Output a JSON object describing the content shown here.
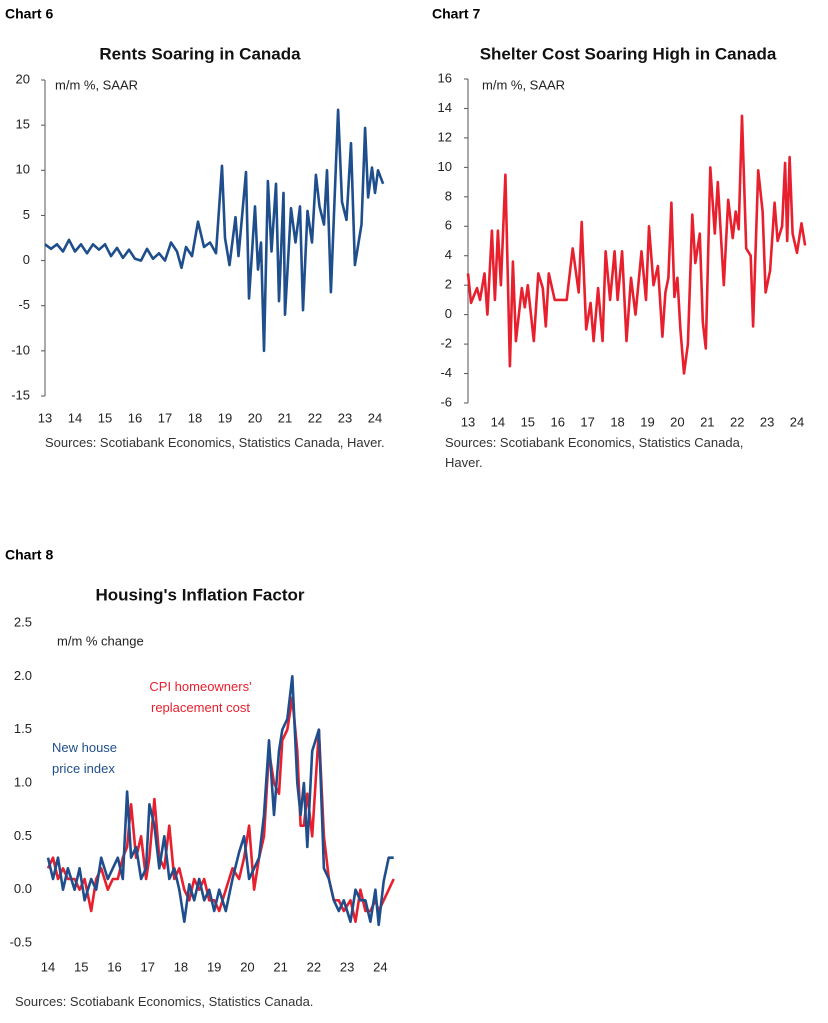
{
  "chart_data": [
    {
      "type": "line",
      "chart_label": "Chart 6",
      "title": "Rents Soaring in Canada",
      "ylabel": "m/m %, SAAR",
      "source": "Sources: Scotiabank Economics, Statistics Canada, Haver.",
      "xlim": [
        13,
        24.5
      ],
      "ylim": [
        -15,
        20
      ],
      "y_axis_line": true,
      "xticks": [
        13,
        14,
        15,
        16,
        17,
        18,
        19,
        20,
        21,
        22,
        23,
        24
      ],
      "yticks": [
        20,
        15,
        10,
        5,
        0,
        -5,
        -10,
        -15
      ],
      "x": [
        13.0,
        13.2,
        13.4,
        13.6,
        13.8,
        14.0,
        14.2,
        14.4,
        14.6,
        14.8,
        15.0,
        15.2,
        15.4,
        15.6,
        15.8,
        16.0,
        16.2,
        16.4,
        16.6,
        16.8,
        17.0,
        17.2,
        17.4,
        17.55,
        17.7,
        17.9,
        18.1,
        18.3,
        18.5,
        18.7,
        18.9,
        19.0,
        19.15,
        19.35,
        19.45,
        19.7,
        19.8,
        20.0,
        20.1,
        20.2,
        20.3,
        20.43,
        20.55,
        20.7,
        20.8,
        20.95,
        21.0,
        21.2,
        21.35,
        21.5,
        21.6,
        21.75,
        21.9,
        22.03,
        22.15,
        22.3,
        22.4,
        22.53,
        22.77,
        22.9,
        23.05,
        23.2,
        23.33,
        23.55,
        23.67,
        23.77,
        23.9,
        24.0,
        24.1,
        24.27
      ],
      "series": [
        {
          "color": "#1f4e8c",
          "values": [
            1.8,
            1.3,
            1.8,
            1.0,
            2.3,
            1.0,
            1.8,
            0.8,
            1.8,
            1.2,
            1.8,
            0.5,
            1.4,
            0.3,
            1.2,
            0.2,
            0.0,
            1.3,
            0.2,
            0.8,
            0.0,
            2.0,
            1.0,
            -0.8,
            1.5,
            0.5,
            4.3,
            1.5,
            2.0,
            0.8,
            10.5,
            2.5,
            -0.5,
            4.8,
            0.5,
            9.8,
            -4.2,
            6.0,
            -1.0,
            2.0,
            -10.0,
            8.8,
            1.0,
            8.5,
            -4.5,
            7.5,
            -6.0,
            5.8,
            2.0,
            6.0,
            -5.5,
            5.5,
            2.0,
            9.5,
            6.0,
            4.0,
            10.0,
            -3.5,
            16.7,
            6.5,
            4.5,
            13.0,
            -0.5,
            4.0,
            14.7,
            7.0,
            10.3,
            7.5,
            10.0,
            8.5
          ]
        }
      ]
    },
    {
      "type": "line",
      "chart_label": "Chart 7",
      "title": "Shelter Cost Soaring High in Canada",
      "ylabel": "m/m %, SAAR",
      "source": "Sources: Scotiabank Economics, Statistics Canada, Haver.",
      "xlim": [
        13,
        24.5
      ],
      "ylim": [
        -6,
        16
      ],
      "y_axis_line": true,
      "xticks": [
        13,
        14,
        15,
        16,
        17,
        18,
        19,
        20,
        21,
        22,
        23,
        24
      ],
      "yticks": [
        16,
        14,
        12,
        10,
        8,
        6,
        4,
        2,
        0,
        -2,
        -4,
        -6
      ],
      "x": [
        13.0,
        13.1,
        13.3,
        13.4,
        13.55,
        13.65,
        13.8,
        13.9,
        14.0,
        14.1,
        14.25,
        14.4,
        14.5,
        14.6,
        14.8,
        14.9,
        15.0,
        15.2,
        15.35,
        15.5,
        15.6,
        15.7,
        15.9,
        16.0,
        16.3,
        16.5,
        16.7,
        16.8,
        16.95,
        17.1,
        17.2,
        17.35,
        17.5,
        17.6,
        17.75,
        17.9,
        18.0,
        18.15,
        18.3,
        18.45,
        18.6,
        18.8,
        18.95,
        19.05,
        19.2,
        19.35,
        19.5,
        19.6,
        19.7,
        19.8,
        19.9,
        20.0,
        20.1,
        20.22,
        20.35,
        20.5,
        20.6,
        20.75,
        20.85,
        20.95,
        21.1,
        21.25,
        21.35,
        21.55,
        21.7,
        21.85,
        21.95,
        22.05,
        22.16,
        22.3,
        22.45,
        22.53,
        22.7,
        22.85,
        22.95,
        23.1,
        23.25,
        23.35,
        23.5,
        23.6,
        23.67,
        23.75,
        23.85,
        24.0,
        24.15,
        24.27
      ],
      "series": [
        {
          "color": "#e8202e",
          "values": [
            2.8,
            0.8,
            1.8,
            1.0,
            2.8,
            0.0,
            5.7,
            1.0,
            5.7,
            2.0,
            9.5,
            -3.5,
            3.6,
            -1.8,
            1.8,
            0.5,
            2.0,
            -1.8,
            2.8,
            1.8,
            -0.8,
            2.8,
            1.0,
            1.0,
            1.0,
            4.5,
            1.5,
            6.3,
            -1.0,
            0.8,
            -1.8,
            1.8,
            -1.8,
            4.3,
            1.0,
            4.3,
            1.0,
            4.3,
            -1.8,
            2.5,
            0.0,
            4.3,
            1.0,
            6.0,
            2.0,
            3.3,
            -1.5,
            1.5,
            2.5,
            7.6,
            1.2,
            2.5,
            -1.0,
            -4.0,
            -2.0,
            6.8,
            3.5,
            5.5,
            -0.5,
            -2.3,
            10.0,
            5.5,
            9.0,
            2.0,
            7.8,
            5.2,
            7.0,
            5.8,
            13.5,
            4.5,
            4.0,
            -0.8,
            9.8,
            7.0,
            1.5,
            3.0,
            7.6,
            5.0,
            6.0,
            10.3,
            5.0,
            10.7,
            5.5,
            4.2,
            6.2,
            4.7
          ]
        }
      ]
    },
    {
      "type": "line",
      "chart_label": "Chart 8",
      "title": "Housing's Inflation Factor",
      "ylabel": "m/m % change",
      "source": "Sources: Scotiabank Economics, Statistics Canada.",
      "xlim": [
        14,
        24.5
      ],
      "ylim": [
        -0.5,
        2.5
      ],
      "y_axis_line": false,
      "xticks": [
        14,
        15,
        16,
        17,
        18,
        19,
        20,
        21,
        22,
        23,
        24
      ],
      "yticks": [
        2.5,
        {
          "value": 2,
          "label": "2.0"
        },
        1.5,
        {
          "value": 1,
          "label": "1.0"
        },
        0.5,
        {
          "value": 0,
          "label": "0.0"
        },
        -0.5
      ],
      "x": [
        14.0,
        14.15,
        14.3,
        14.45,
        14.6,
        14.8,
        14.95,
        15.1,
        15.3,
        15.45,
        15.6,
        15.8,
        15.95,
        16.1,
        16.25,
        16.38,
        16.5,
        16.65,
        16.8,
        16.95,
        17.05,
        17.2,
        17.35,
        17.5,
        17.65,
        17.8,
        17.95,
        18.1,
        18.25,
        18.4,
        18.55,
        18.7,
        18.85,
        19.0,
        19.15,
        19.35,
        19.55,
        19.75,
        19.9,
        20.05,
        20.2,
        20.35,
        20.5,
        20.65,
        20.8,
        20.95,
        21.05,
        21.2,
        21.35,
        21.5,
        21.6,
        21.7,
        21.8,
        21.95,
        22.15,
        22.3,
        22.45,
        22.6,
        22.75,
        22.9,
        23.1,
        23.25,
        23.4,
        23.55,
        23.7,
        23.85,
        23.95,
        24.1,
        24.25,
        24.4
      ],
      "series": [
        {
          "name": "CPI  homeowners' replacement cost",
          "color": "#e8202e",
          "values": [
            0.2,
            0.3,
            0.1,
            0.2,
            0.1,
            0.1,
            0.0,
            0.1,
            -0.2,
            0.1,
            0.2,
            0.0,
            0.1,
            0.1,
            0.3,
            0.4,
            0.8,
            0.3,
            0.5,
            0.1,
            0.3,
            0.85,
            0.3,
            0.2,
            0.6,
            0.1,
            0.2,
            0.0,
            -0.1,
            0.1,
            0.0,
            0.1,
            -0.1,
            -0.1,
            -0.2,
            0.0,
            0.2,
            0.1,
            0.3,
            0.6,
            0.0,
            0.3,
            0.5,
            1.3,
            1.0,
            0.9,
            1.4,
            1.5,
            1.8,
            1.3,
            0.6,
            0.6,
            0.9,
            0.5,
            1.5,
            0.5,
            0.1,
            -0.1,
            -0.1,
            -0.2,
            -0.1,
            -0.3,
            0.0,
            -0.2,
            -0.2,
            -0.1,
            -0.2,
            -0.1,
            0.0,
            0.1
          ]
        },
        {
          "name": "New house price index",
          "color": "#1f4e8c",
          "values": [
            0.3,
            0.1,
            0.3,
            0.0,
            0.2,
            0.0,
            0.2,
            -0.1,
            0.1,
            0.0,
            0.3,
            0.1,
            0.2,
            0.3,
            0.1,
            0.92,
            0.3,
            0.4,
            0.1,
            0.2,
            0.8,
            0.6,
            0.2,
            0.5,
            0.1,
            0.2,
            0.0,
            -0.3,
            0.05,
            -0.1,
            0.1,
            -0.1,
            0.0,
            -0.2,
            0.0,
            -0.2,
            0.1,
            0.35,
            0.5,
            0.1,
            0.2,
            0.3,
            0.7,
            1.4,
            0.7,
            1.3,
            1.5,
            1.6,
            2.0,
            1.0,
            0.7,
            1.0,
            0.4,
            1.3,
            1.5,
            0.2,
            0.1,
            -0.1,
            -0.2,
            -0.1,
            -0.3,
            0.0,
            -0.1,
            -0.1,
            -0.3,
            0.0,
            -0.33,
            0.08,
            0.3,
            0.3
          ]
        }
      ]
    }
  ]
}
